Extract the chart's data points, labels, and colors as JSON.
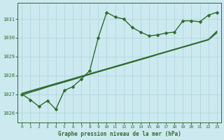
{
  "xlabel": "Graphe pression niveau de la mer (hPa)",
  "x": [
    0,
    1,
    2,
    3,
    4,
    5,
    6,
    7,
    8,
    9,
    10,
    11,
    12,
    13,
    14,
    15,
    16,
    17,
    18,
    19,
    20,
    21,
    22,
    23
  ],
  "main_line": [
    1027.0,
    1026.7,
    1026.35,
    1026.65,
    1026.2,
    1027.2,
    1027.4,
    1027.8,
    1028.25,
    1030.0,
    1031.35,
    1031.1,
    1031.0,
    1030.55,
    1030.3,
    1030.1,
    1030.15,
    1030.25,
    1030.3,
    1030.9,
    1030.9,
    1030.85,
    1031.2,
    1031.35
  ],
  "trend1": [
    1027.05,
    1027.18,
    1027.31,
    1027.44,
    1027.57,
    1027.7,
    1027.83,
    1027.96,
    1028.09,
    1028.22,
    1028.35,
    1028.48,
    1028.61,
    1028.74,
    1028.87,
    1029.0,
    1029.13,
    1029.26,
    1029.39,
    1029.52,
    1029.65,
    1029.78,
    1029.91,
    1030.35
  ],
  "trend2": [
    1027.0,
    1027.14,
    1027.27,
    1027.41,
    1027.54,
    1027.67,
    1027.8,
    1027.94,
    1028.07,
    1028.2,
    1028.33,
    1028.46,
    1028.59,
    1028.72,
    1028.85,
    1028.98,
    1029.12,
    1029.25,
    1029.38,
    1029.51,
    1029.64,
    1029.77,
    1029.9,
    1030.3
  ],
  "trend3": [
    1026.95,
    1027.1,
    1027.23,
    1027.38,
    1027.51,
    1027.64,
    1027.77,
    1027.91,
    1028.05,
    1028.18,
    1028.31,
    1028.44,
    1028.57,
    1028.7,
    1028.83,
    1028.96,
    1029.1,
    1029.23,
    1029.36,
    1029.49,
    1029.62,
    1029.75,
    1029.88,
    1030.25
  ],
  "line_color": "#2d6a2d",
  "bg_color": "#cde9f0",
  "grid_color": "#b0d5dc",
  "ylim": [
    1025.5,
    1031.85
  ],
  "yticks": [
    1026,
    1027,
    1028,
    1029,
    1030,
    1031
  ],
  "xticks": [
    0,
    1,
    2,
    3,
    4,
    5,
    6,
    7,
    8,
    9,
    10,
    11,
    12,
    13,
    14,
    15,
    16,
    17,
    18,
    19,
    20,
    21,
    22,
    23
  ],
  "marker": "D",
  "markersize": 2.5,
  "linewidth": 1.0
}
